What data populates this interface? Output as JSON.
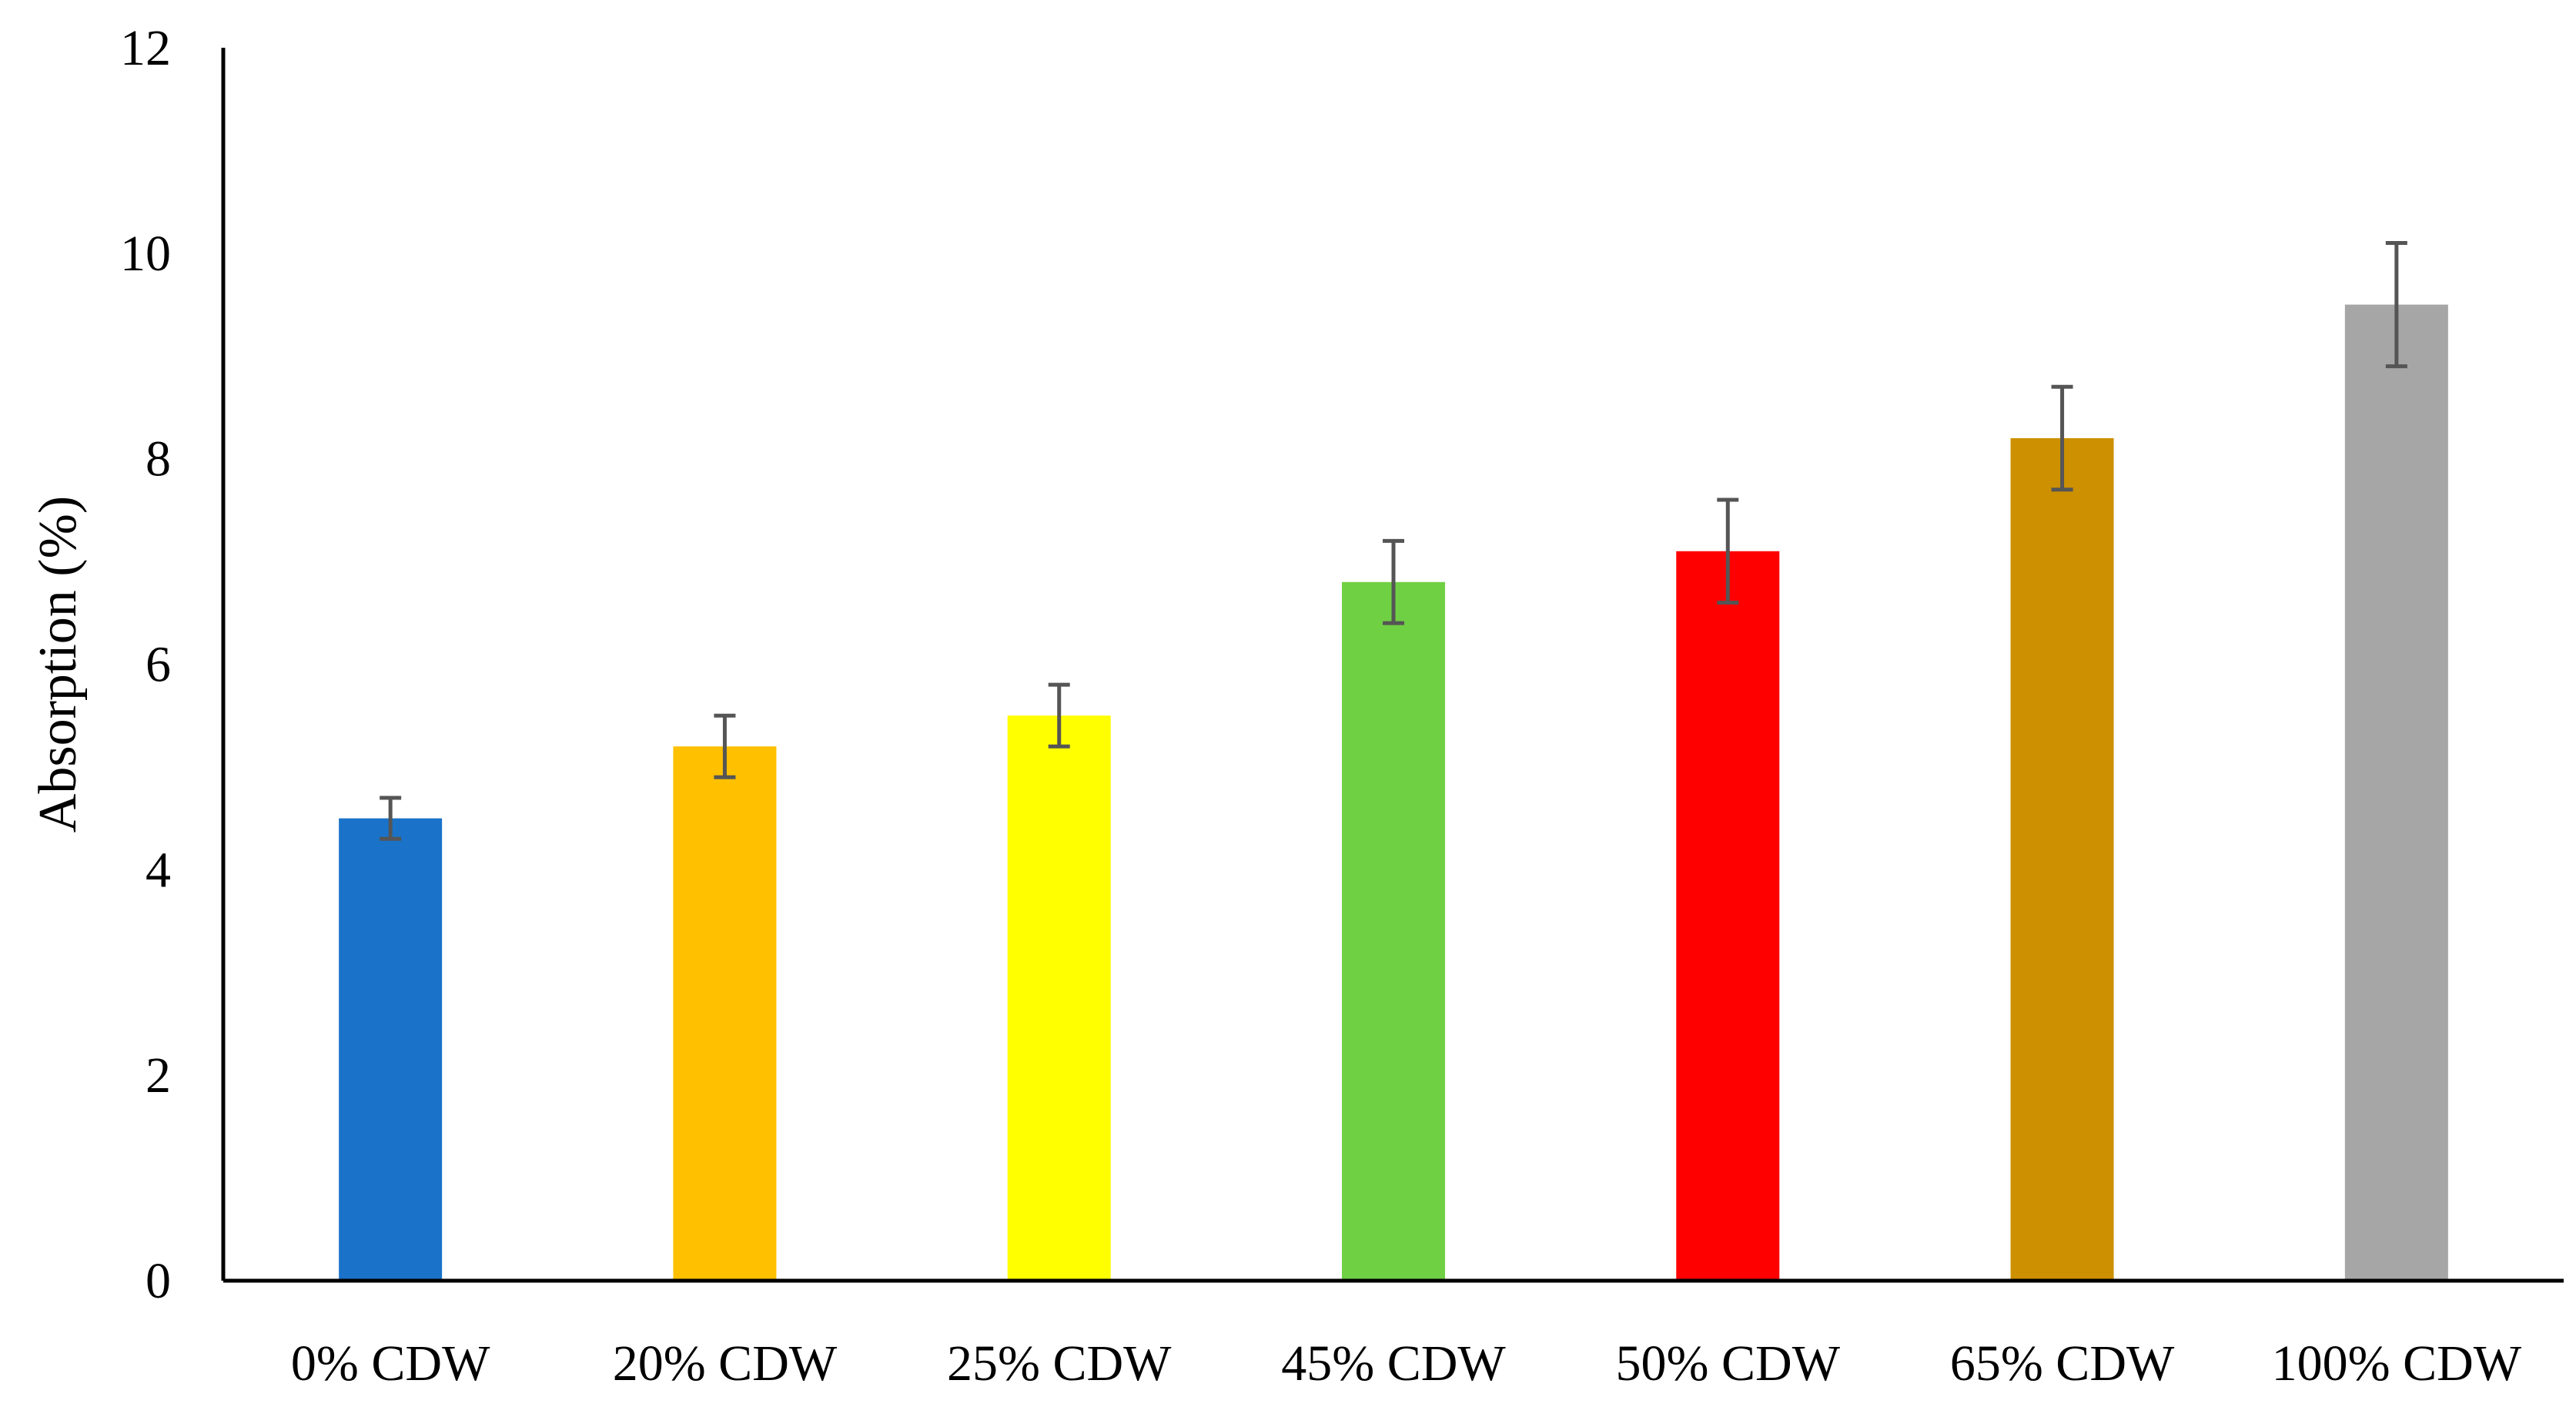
{
  "chart_data": {
    "type": "bar",
    "title": "",
    "xlabel": "",
    "ylabel": "Absorption (%)",
    "ylim": [
      0,
      12
    ],
    "yticks": [
      0,
      2,
      4,
      6,
      8,
      10,
      12
    ],
    "grid": false,
    "legend": "none",
    "categories": [
      "0% CDW",
      "20% CDW",
      "25% CDW",
      "45% CDW",
      "50% CDW",
      "65% CDW",
      "100% CDW"
    ],
    "values": [
      4.5,
      5.2,
      5.5,
      6.8,
      7.1,
      8.2,
      9.5
    ],
    "errors": [
      0.2,
      0.3,
      0.3,
      0.4,
      0.5,
      0.5,
      0.6
    ],
    "colors": [
      "#1a73c9",
      "#ffc000",
      "#ffff00",
      "#70d044",
      "#ff0000",
      "#cc9000",
      "#a6a6a6"
    ],
    "error_bar_color": "#555555",
    "axis_color": "#000000"
  }
}
